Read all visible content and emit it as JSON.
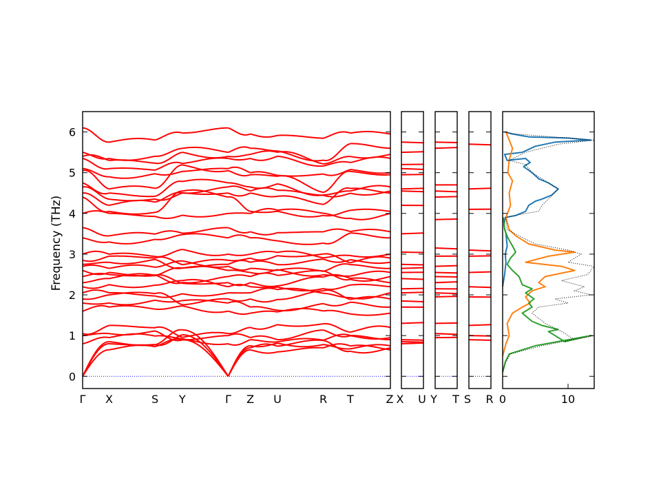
{
  "chart_data": {
    "type": "line",
    "ylabel": "Frequency (THz)",
    "ylim": [
      -0.3,
      6.5
    ],
    "yticks": [
      0,
      1,
      2,
      3,
      4,
      5,
      6
    ],
    "line_color": "#ff0000",
    "zero_line_color": "#0000ff",
    "segments": [
      {
        "labels": [
          "Γ",
          "X",
          "S",
          "Y",
          "Γ",
          "Z",
          "U",
          "R",
          "T",
          "Z"
        ],
        "positions": [
          0,
          0.086,
          0.235,
          0.324,
          0.473,
          0.545,
          0.633,
          0.782,
          0.87,
          1.0
        ]
      },
      {
        "labels": [
          "X",
          "U"
        ]
      },
      {
        "labels": [
          "Y",
          "T"
        ]
      },
      {
        "labels": [
          "S",
          "R"
        ]
      }
    ],
    "bands_gamma": [
      0,
      0,
      0,
      0.8,
      1.0,
      1.05,
      1.6,
      1.8,
      1.9,
      2.05,
      2.2,
      2.3,
      2.45,
      2.6,
      2.7,
      2.75,
      2.85,
      3.0,
      3.4,
      3.65,
      4.0,
      4.4,
      4.5,
      4.65,
      4.75,
      5.05,
      5.1,
      5.35,
      5.4,
      5.5,
      6.1
    ],
    "bands_x": [
      0.65,
      0.8,
      0.85,
      0.95,
      1.05,
      1.25,
      1.7,
      1.8,
      2.0,
      2.05,
      2.25,
      2.4,
      2.5,
      2.55,
      2.65,
      2.8,
      2.95,
      3.0,
      3.3,
      3.45,
      4.0,
      4.05,
      4.2,
      4.35,
      4.5,
      4.6,
      4.9,
      5.1,
      5.3,
      5.35,
      5.75
    ],
    "bands_z": [
      0.65,
      0.7,
      0.75,
      0.9,
      0.95,
      1.2,
      1.55,
      1.7,
      1.9,
      2.05,
      2.2,
      2.3,
      2.45,
      2.55,
      2.65,
      2.8,
      2.9,
      3.0,
      3.4,
      3.55,
      4.0,
      4.05,
      4.5,
      4.55,
      4.65,
      4.95,
      5.0,
      5.35,
      5.45,
      5.6,
      5.95
    ],
    "flat_bands_xu": [
      0,
      0.8,
      0.85,
      0.9,
      1.3,
      1.7,
      1.85,
      2.05,
      2.15,
      2.4,
      2.55,
      2.65,
      2.75,
      3.05,
      3.5,
      4.2,
      4.55,
      4.6,
      4.95,
      5.1,
      5.2,
      5.5,
      5.75
    ],
    "flat_bands_yt": [
      0,
      0.95,
      1.05,
      1.3,
      1.95,
      2.05,
      2.15,
      2.3,
      2.45,
      2.55,
      2.7,
      2.95,
      3.15,
      3.85,
      4.4,
      4.55,
      4.7,
      5.6,
      5.75
    ],
    "flat_bands_sr": [
      0,
      0.9,
      1.0,
      1.25,
      1.95,
      2.2,
      2.55,
      2.95,
      3.1,
      4.1,
      4.6,
      5.7
    ],
    "dos": {
      "xlim": [
        0,
        14
      ],
      "xticks": [
        0,
        10
      ],
      "series": [
        {
          "color": "#1f77b4",
          "style": "solid",
          "points": [
            [
              0,
              2.2
            ],
            [
              0.3,
              2.5
            ],
            [
              0.5,
              2.8
            ],
            [
              0.4,
              3.0
            ],
            [
              0.7,
              3.2
            ],
            [
              0.5,
              3.5
            ],
            [
              0.2,
              3.7
            ],
            [
              0.4,
              3.9
            ],
            [
              2.0,
              3.95
            ],
            [
              3.5,
              4.05
            ],
            [
              4.0,
              4.2
            ],
            [
              5.0,
              4.3
            ],
            [
              6.0,
              4.35
            ],
            [
              7.5,
              4.45
            ],
            [
              8.5,
              4.6
            ],
            [
              7.0,
              4.75
            ],
            [
              5.5,
              4.85
            ],
            [
              4.5,
              5.0
            ],
            [
              3.2,
              5.15
            ],
            [
              4.2,
              5.25
            ],
            [
              3.5,
              5.35
            ],
            [
              0.7,
              5.3
            ],
            [
              0.3,
              5.45
            ],
            [
              3.0,
              5.5
            ],
            [
              5.0,
              5.65
            ],
            [
              8.0,
              5.75
            ],
            [
              13.5,
              5.8
            ],
            [
              10.0,
              5.85
            ],
            [
              4.0,
              5.88
            ],
            [
              1.5,
              5.95
            ],
            [
              0.3,
              6.0
            ]
          ]
        },
        {
          "color": "#ff7f0e",
          "style": "solid",
          "points": [
            [
              0,
              0.5
            ],
            [
              0.5,
              0.8
            ],
            [
              1.0,
              1.0
            ],
            [
              0.7,
              1.3
            ],
            [
              1.5,
              1.55
            ],
            [
              3.0,
              1.7
            ],
            [
              4.2,
              1.8
            ],
            [
              3.5,
              1.95
            ],
            [
              4.5,
              2.1
            ],
            [
              6.5,
              2.2
            ],
            [
              5.5,
              2.3
            ],
            [
              6.5,
              2.45
            ],
            [
              11.0,
              2.6
            ],
            [
              9.0,
              2.7
            ],
            [
              3.5,
              2.8
            ],
            [
              7.0,
              2.95
            ],
            [
              11.0,
              3.05
            ],
            [
              8.0,
              3.1
            ],
            [
              4.0,
              3.25
            ],
            [
              2.0,
              3.45
            ],
            [
              1.0,
              3.6
            ],
            [
              0.5,
              3.9
            ],
            [
              1.2,
              4.2
            ],
            [
              1.0,
              4.5
            ],
            [
              1.5,
              4.8
            ],
            [
              0.8,
              5.0
            ],
            [
              1.0,
              5.3
            ],
            [
              1.5,
              5.6
            ],
            [
              1.0,
              5.8
            ],
            [
              0.5,
              6.0
            ]
          ]
        },
        {
          "color": "#2ca02c",
          "style": "solid",
          "points": [
            [
              0,
              0.1
            ],
            [
              0.4,
              0.35
            ],
            [
              1.0,
              0.55
            ],
            [
              5.0,
              0.75
            ],
            [
              13.5,
              1.0
            ],
            [
              10.5,
              0.9
            ],
            [
              12.0,
              0.95
            ],
            [
              9.5,
              0.85
            ],
            [
              7.0,
              1.1
            ],
            [
              8.5,
              1.15
            ],
            [
              6.0,
              1.25
            ],
            [
              4.5,
              1.35
            ],
            [
              3.0,
              1.55
            ],
            [
              4.5,
              1.7
            ],
            [
              4.0,
              1.8
            ],
            [
              4.8,
              1.9
            ],
            [
              3.5,
              2.05
            ],
            [
              4.5,
              2.15
            ],
            [
              3.0,
              2.25
            ],
            [
              2.5,
              2.45
            ],
            [
              1.5,
              2.6
            ],
            [
              0.7,
              2.75
            ],
            [
              1.2,
              2.9
            ],
            [
              2.0,
              3.05
            ],
            [
              1.5,
              3.2
            ],
            [
              0.8,
              3.4
            ],
            [
              0.3,
              3.6
            ],
            [
              0.1,
              3.9
            ]
          ]
        },
        {
          "color": "#000000",
          "style": "dotted",
          "points": [
            [
              0,
              0.1
            ],
            [
              0.5,
              0.35
            ],
            [
              1.2,
              0.55
            ],
            [
              6.0,
              0.75
            ],
            [
              14.0,
              1.0
            ],
            [
              11.0,
              0.9
            ],
            [
              9.0,
              1.1
            ],
            [
              6.5,
              1.3
            ],
            [
              4.5,
              1.55
            ],
            [
              5.5,
              1.7
            ],
            [
              10.0,
              1.8
            ],
            [
              8.0,
              1.9
            ],
            [
              13.5,
              2.0
            ],
            [
              11.0,
              2.1
            ],
            [
              12.5,
              2.2
            ],
            [
              9.0,
              2.35
            ],
            [
              13.0,
              2.5
            ],
            [
              14.0,
              2.7
            ],
            [
              10.0,
              2.8
            ],
            [
              12.0,
              3.0
            ],
            [
              10.0,
              3.1
            ],
            [
              5.0,
              3.25
            ],
            [
              2.5,
              3.45
            ],
            [
              0.7,
              3.6
            ],
            [
              0.5,
              3.9
            ],
            [
              3.5,
              4.0
            ],
            [
              5.5,
              4.05
            ],
            [
              6.0,
              4.2
            ],
            [
              7.0,
              4.35
            ],
            [
              8.5,
              4.6
            ],
            [
              7.0,
              4.75
            ],
            [
              5.5,
              4.9
            ],
            [
              4.5,
              5.0
            ],
            [
              3.5,
              5.2
            ],
            [
              1.0,
              5.3
            ],
            [
              3.5,
              5.5
            ],
            [
              8.5,
              5.7
            ],
            [
              14.0,
              5.8
            ],
            [
              10.0,
              5.85
            ],
            [
              2.0,
              5.95
            ],
            [
              0.3,
              6.0
            ]
          ]
        }
      ]
    }
  }
}
